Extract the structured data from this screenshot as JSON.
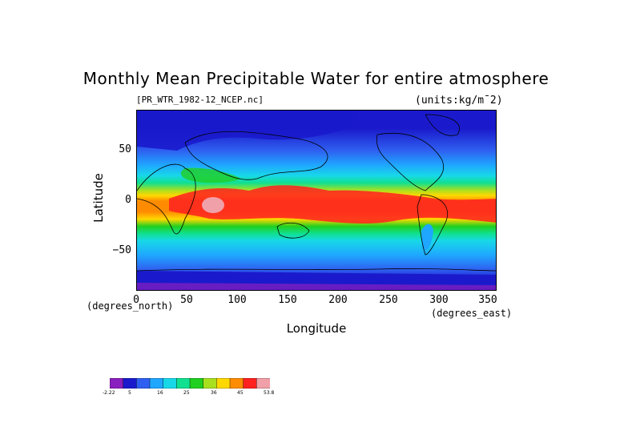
{
  "title": "Monthly Mean Precipitable Water for entire atmosphere",
  "file_label": "[PR_WTR_1982-12_NCEP.nc]",
  "units_label": "(units:kg/m¯2)",
  "y_axis": {
    "label": "Latitude",
    "unit": "(degrees_north)",
    "ticks": [
      "50",
      "0",
      "−50"
    ]
  },
  "x_axis": {
    "label": "Longitude",
    "unit": "(degrees_east)",
    "ticks": [
      "0",
      "50",
      "100",
      "150",
      "200",
      "250",
      "300",
      "350"
    ]
  },
  "colorbar": {
    "colors": [
      "#8a1fbf",
      "#1a1acc",
      "#2f5ff0",
      "#1fa6ff",
      "#18d8e8",
      "#10e090",
      "#20d020",
      "#a8e020",
      "#ffd800",
      "#ff8c00",
      "#ff2020",
      "#f0a0a8"
    ],
    "labels": [
      "-2.22",
      "5",
      "16",
      "25",
      "36",
      "45",
      "53.8"
    ]
  },
  "chart_data": {
    "type": "heatmap",
    "title": "Monthly Mean Precipitable Water for entire atmosphere",
    "xlabel": "Longitude",
    "ylabel": "Latitude",
    "xlim": [
      0,
      357.5
    ],
    "ylim": [
      -90,
      90
    ],
    "x_ticks": [
      0,
      50,
      100,
      150,
      200,
      250,
      300,
      350
    ],
    "y_ticks": [
      -50,
      0,
      50
    ],
    "value_range": [
      -2.22,
      53.8
    ],
    "zonal_profile": {
      "lat": [
        90,
        70,
        55,
        40,
        30,
        20,
        10,
        5,
        0,
        -5,
        -10,
        -20,
        -30,
        -40,
        -55,
        -70,
        -90
      ],
      "value": [
        2,
        4,
        8,
        14,
        20,
        28,
        40,
        44,
        42,
        44,
        40,
        30,
        22,
        14,
        8,
        3,
        1
      ]
    }
  }
}
